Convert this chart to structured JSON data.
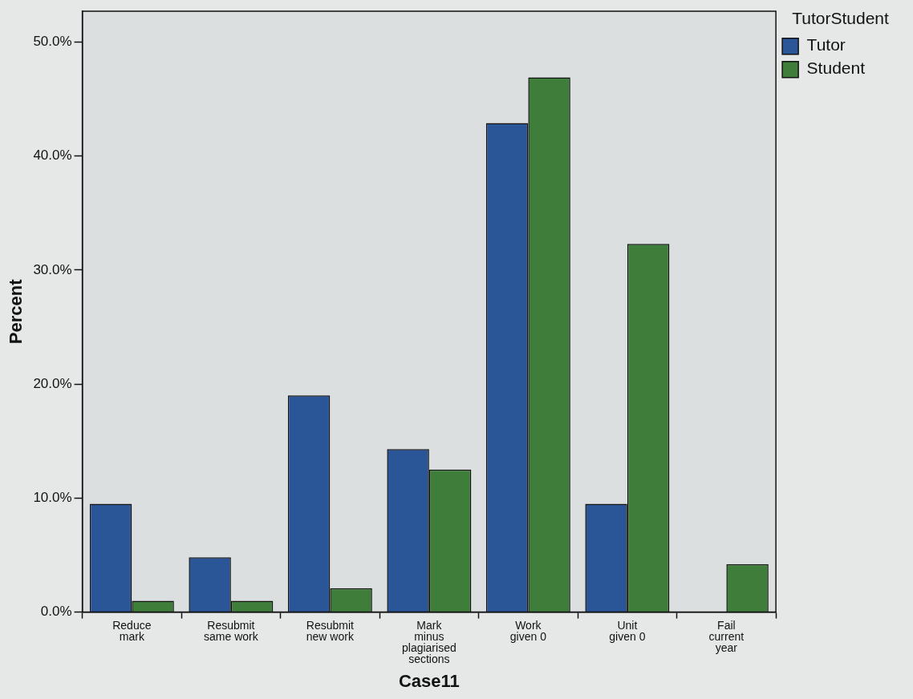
{
  "chart_data": {
    "type": "bar",
    "xlabel": "Case11",
    "ylabel": "Percent",
    "legend_title": "TutorStudent",
    "legend": "top right",
    "categories": [
      "Reduce mark",
      "Resubmit same work",
      "Resubmit new work",
      "Mark minus plagiarised sections",
      "Work given 0",
      "Unit given 0",
      "Fail current year"
    ],
    "series": [
      {
        "name": "Tutor",
        "color": "#2a5597",
        "values": [
          9.5,
          4.8,
          19.0,
          14.3,
          42.9,
          9.5,
          0
        ]
      },
      {
        "name": "Student",
        "color": "#3f7d3a",
        "values": [
          1.0,
          1.0,
          2.1,
          12.5,
          46.9,
          32.3,
          4.2
        ]
      }
    ],
    "ylim": [
      0,
      52.7
    ],
    "yticks": [
      {
        "value": 0,
        "label": "0.0%"
      },
      {
        "value": 10,
        "label": "10.0%"
      },
      {
        "value": 20,
        "label": "20.0%"
      },
      {
        "value": 30,
        "label": "30.0%"
      },
      {
        "value": 40,
        "label": "40.0%"
      },
      {
        "value": 50,
        "label": "50.0%"
      }
    ],
    "grid": false
  }
}
